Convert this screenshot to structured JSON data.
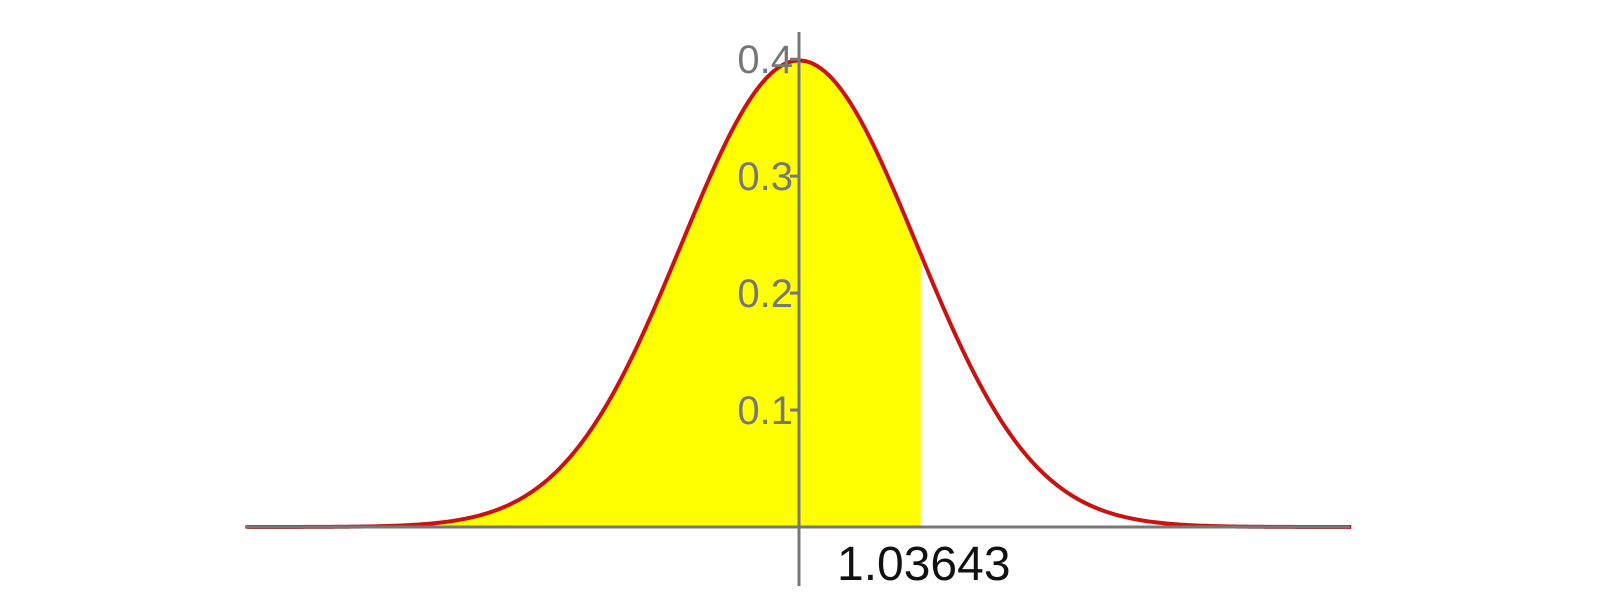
{
  "chart_data": {
    "type": "area",
    "title": "",
    "xlabel": "",
    "ylabel": "",
    "xlim": [
      -4.7,
      4.7
    ],
    "ylim": [
      0,
      0.4
    ],
    "grid": false,
    "series": [
      {
        "function": "standard normal density",
        "mean": 0,
        "sd": 1,
        "shaded_region": {
          "from": -4.7,
          "to": 1.03643
        }
      }
    ],
    "y_ticks": [
      {
        "value": 0.1,
        "label": "0.1"
      },
      {
        "value": 0.2,
        "label": "0.2"
      },
      {
        "value": 0.3,
        "label": "0.3"
      },
      {
        "value": 0.4,
        "label": "0.4"
      }
    ],
    "x_marker": {
      "value": 1.03643,
      "label": "1.03643"
    },
    "colors": {
      "curve": "#cc1111",
      "fill": "#ffff00",
      "axes": "#777777",
      "tick_label": "#777777",
      "marker_label": "#111111"
    }
  }
}
